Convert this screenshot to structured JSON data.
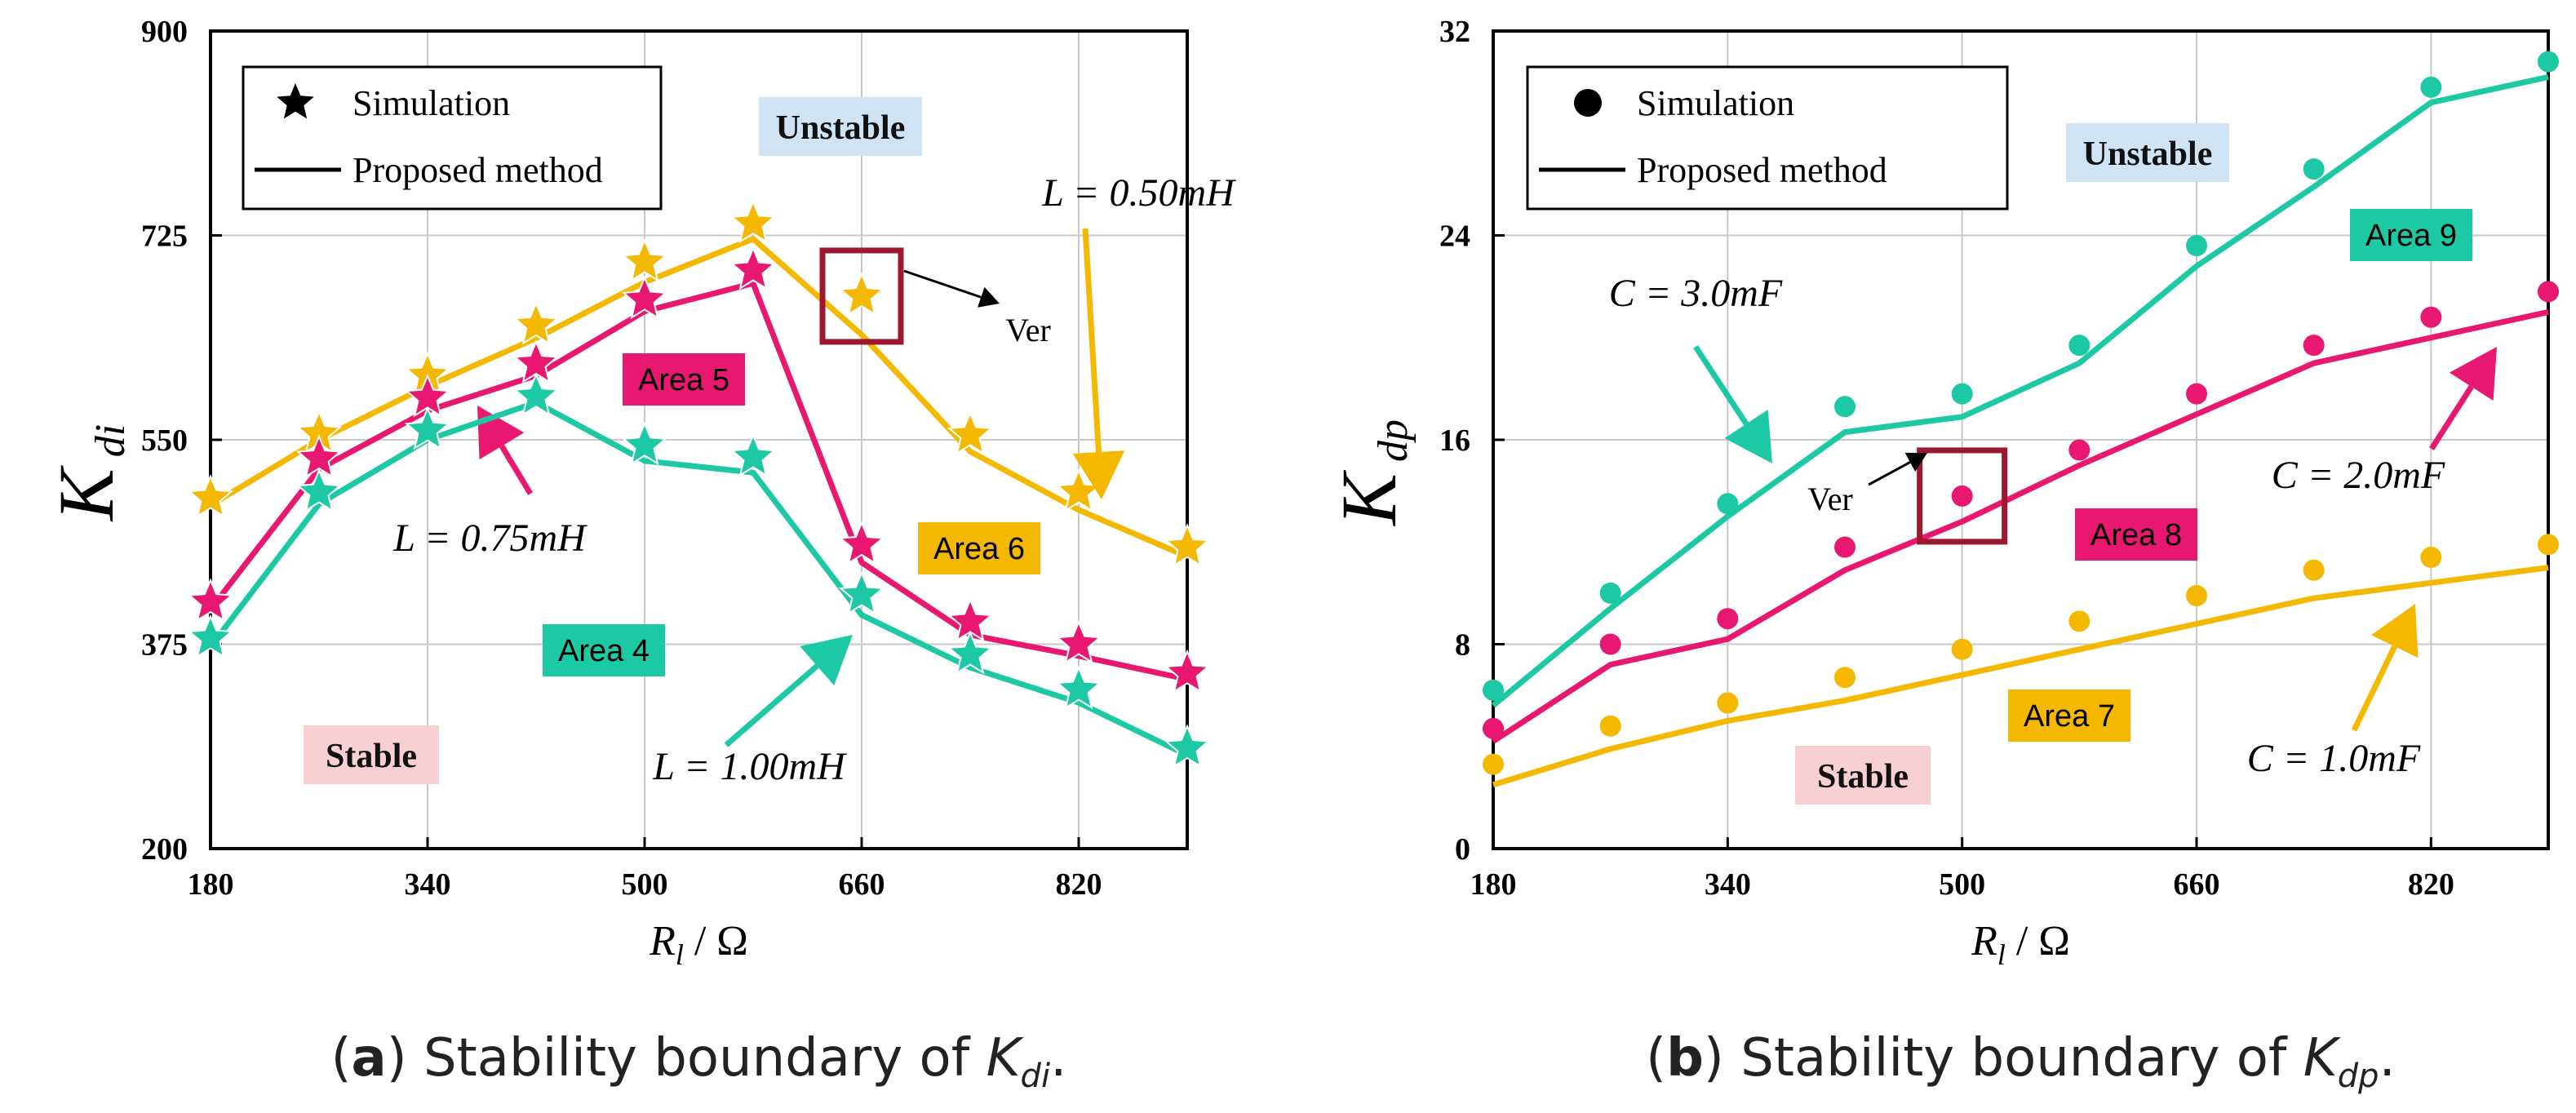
{
  "chart_data": [
    {
      "id": "a",
      "type": "line",
      "ylabel_main": "K",
      "ylabel_sub": "di",
      "xlabel_main": "R",
      "xlabel_sub": "l",
      "xlabel_unit": " / Ω",
      "xlim": [
        180,
        900
      ],
      "ylim": [
        200,
        900
      ],
      "xticks": [
        180,
        340,
        500,
        660,
        820
      ],
      "yticks": [
        200,
        375,
        550,
        725,
        900
      ],
      "grid": true,
      "legend": {
        "position": "top-left",
        "marker_label": "Simulation",
        "line_label": "Proposed method",
        "marker": "star"
      },
      "regions": {
        "stable": "Stable",
        "unstable": "Unstable"
      },
      "series": [
        {
          "label": "L = 0.50mH",
          "color": "#F5B800",
          "area": "Area 6",
          "x": [
            180,
            260,
            340,
            420,
            500,
            580,
            660,
            740,
            820,
            900
          ],
          "sim": [
            500,
            555,
            605,
            648,
            702,
            735,
            673,
            554,
            505,
            458
          ],
          "line": [
            494,
            550,
            596,
            637,
            685,
            722,
            640,
            540,
            490,
            450
          ]
        },
        {
          "label": "L = 0.75mH",
          "color": "#E8176F",
          "area": "Area 5",
          "x": [
            180,
            260,
            340,
            420,
            500,
            580,
            660,
            740,
            820,
            900
          ],
          "sim": [
            411,
            534,
            586,
            615,
            670,
            695,
            460,
            394,
            375,
            350
          ],
          "line": [
            405,
            525,
            575,
            605,
            660,
            684,
            445,
            383,
            365,
            345
          ]
        },
        {
          "label": "L = 1.00mH",
          "color": "#1DC9A4",
          "area": "Area 4",
          "x": [
            180,
            260,
            340,
            420,
            500,
            580,
            660,
            740,
            820,
            900
          ],
          "sim": [
            380,
            505,
            558,
            587,
            545,
            535,
            417,
            366,
            336,
            286
          ],
          "line": [
            373,
            495,
            550,
            582,
            532,
            522,
            400,
            355,
            325,
            280
          ]
        }
      ],
      "verification": {
        "label": "Ver",
        "x": 660,
        "y": 673
      },
      "caption": {
        "letter": "a",
        "text_before": " Stability boundary of ",
        "var_main": "K",
        "var_sub": "di",
        "text_after": "."
      }
    },
    {
      "id": "b",
      "type": "line",
      "ylabel_main": "K",
      "ylabel_sub": "dp",
      "xlabel_main": "R",
      "xlabel_sub": "l",
      "xlabel_unit": " / Ω",
      "xlim": [
        180,
        900
      ],
      "ylim": [
        0,
        32
      ],
      "xticks": [
        180,
        340,
        500,
        660,
        820
      ],
      "yticks": [
        0,
        8,
        16,
        24,
        32
      ],
      "grid": true,
      "legend": {
        "position": "top-left",
        "marker_label": "Simulation",
        "line_label": "Proposed method",
        "marker": "circle"
      },
      "regions": {
        "stable": "Stable",
        "unstable": "Unstable"
      },
      "series": [
        {
          "label": "C = 3.0mF",
          "color": "#1DC9A4",
          "area": "Area 9",
          "x": [
            180,
            260,
            340,
            420,
            500,
            580,
            660,
            740,
            820,
            900
          ],
          "sim": [
            6.2,
            10,
            13.5,
            17.3,
            17.8,
            19.7,
            23.6,
            26.6,
            29.8,
            30.8
          ],
          "line": [
            5.6,
            9.4,
            13,
            16.3,
            16.9,
            19,
            22.8,
            25.9,
            29.2,
            30.2
          ]
        },
        {
          "label": "C = 2.0mF",
          "color": "#E8176F",
          "area": "Area 8",
          "x": [
            180,
            260,
            340,
            420,
            500,
            580,
            660,
            740,
            820,
            900
          ],
          "sim": [
            4.7,
            8,
            9,
            11.8,
            13.8,
            15.6,
            17.8,
            19.7,
            20.8,
            21.8
          ],
          "line": [
            4.2,
            7.2,
            8.2,
            10.9,
            12.8,
            15,
            17,
            19,
            20,
            21
          ]
        },
        {
          "label": "C = 1.0mF",
          "color": "#F5B800",
          "area": "Area 7",
          "x": [
            180,
            260,
            340,
            420,
            500,
            580,
            660,
            740,
            820,
            900
          ],
          "sim": [
            3.3,
            4.8,
            5.7,
            6.7,
            7.8,
            8.9,
            9.9,
            10.9,
            11.4,
            11.9
          ],
          "line": [
            2.5,
            3.9,
            5,
            5.8,
            6.8,
            7.8,
            8.8,
            9.8,
            10.4,
            11
          ]
        }
      ],
      "verification": {
        "label": "Ver",
        "x": 500,
        "y": 13.8
      },
      "caption": {
        "letter": "b",
        "text_before": " Stability boundary of ",
        "var_main": "K",
        "var_sub": "dp",
        "text_after": "."
      }
    }
  ]
}
